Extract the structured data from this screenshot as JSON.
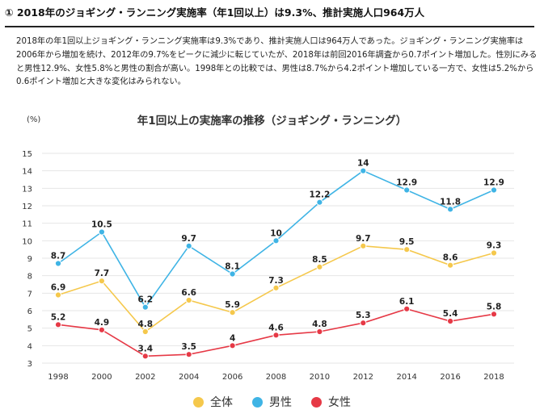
{
  "heading": "① 2018年のジョギング・ランニング実施率（年1回以上）は9.3%、推計実施人口964万人",
  "description": "2018年の年1回以上ジョギング・ランニング実施率は9.3%であり、推計実施人口は964万人であった。ジョギング・ランニング実施率は2006年から増加を続け、2012年の9.7%をピークに減少に転じていたが、2018年は前回2016年調査から0.7ポイント増加した。性別にみると男性12.9%、女性5.8%と男性の割合が高い。1998年との比較では、男性は8.7%から4.2ポイント増加している一方で、女性は5.2%から0.6ポイント増加と大きな変化はみられない。",
  "chart_data": {
    "type": "line",
    "title": "年1回以上の実施率の推移（ジョギング・ランニング）",
    "ylabel": "(%)",
    "xlabel": "",
    "categories": [
      "1998",
      "2000",
      "2002",
      "2004",
      "2006",
      "2008",
      "2010",
      "2012",
      "2014",
      "2016",
      "2018"
    ],
    "yticks": [
      "3",
      "4",
      "5",
      "6",
      "7",
      "8",
      "9",
      "10",
      "11",
      "12",
      "13",
      "14",
      "15"
    ],
    "ylim": [
      3,
      15
    ],
    "grid": true,
    "series": [
      {
        "name": "全体",
        "color": "#f5c84c",
        "values": [
          6.9,
          7.7,
          4.8,
          6.6,
          5.9,
          7.3,
          8.5,
          9.7,
          9.5,
          8.6,
          9.3
        ],
        "labels": [
          "6.9",
          "7.7",
          "4.8",
          "6.6",
          "5.9",
          "7.3",
          "8.5",
          "9.7",
          "9.5",
          "8.6",
          "9.3"
        ]
      },
      {
        "name": "男性",
        "color": "#3fb4e5",
        "values": [
          8.7,
          10.5,
          6.2,
          9.7,
          8.1,
          10,
          12.2,
          14,
          12.9,
          11.8,
          12.9
        ],
        "labels": [
          "8.7",
          "10.5",
          "6.2",
          "9.7",
          "8.1",
          "10",
          "12.2",
          "14",
          "12.9",
          "11.8",
          "12.9"
        ]
      },
      {
        "name": "女性",
        "color": "#e63946",
        "values": [
          5.2,
          4.9,
          3.4,
          3.5,
          4,
          4.6,
          4.8,
          5.3,
          6.1,
          5.4,
          5.8
        ],
        "labels": [
          "5.2",
          "4.9",
          "3.4",
          "3.5",
          "4",
          "4.6",
          "4.8",
          "5.3",
          "6.1",
          "5.4",
          "5.8"
        ]
      }
    ],
    "legend": [
      "全体",
      "男性",
      "女性"
    ],
    "legend_position": "bottom-center"
  }
}
